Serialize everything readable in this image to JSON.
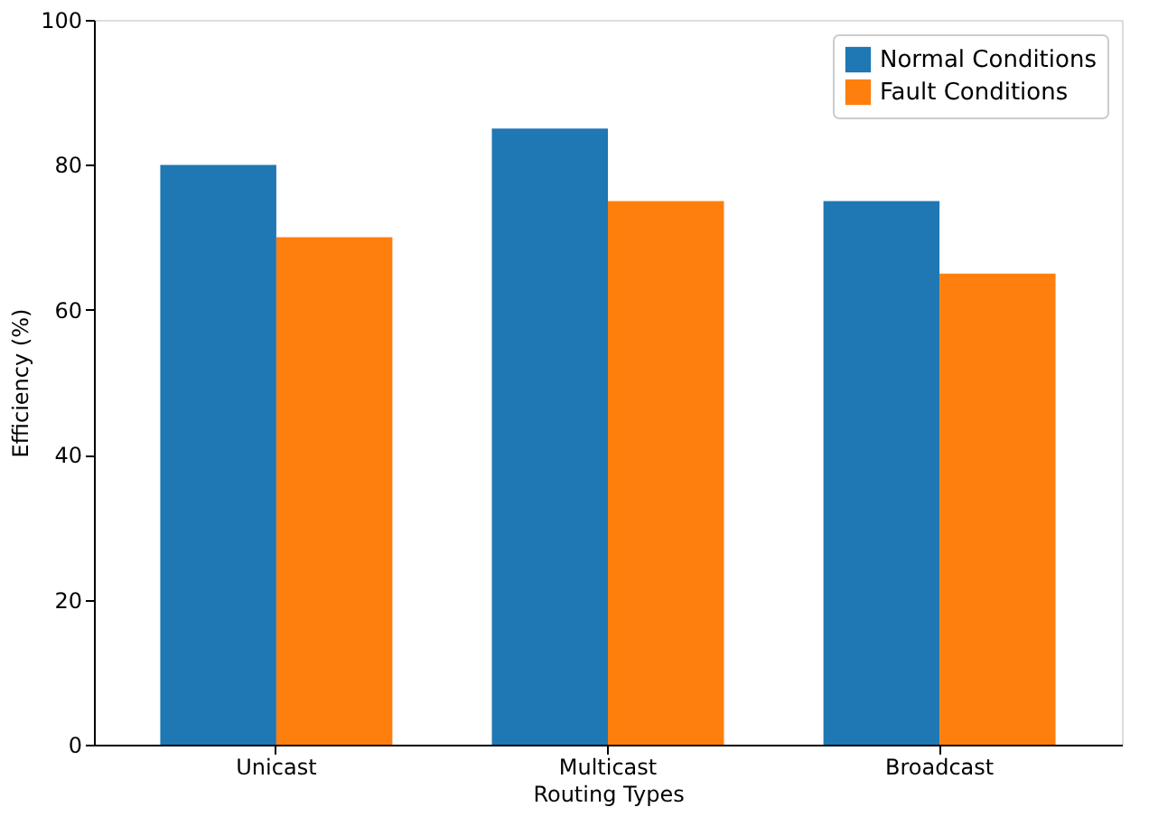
{
  "chart_data": {
    "type": "bar",
    "xlabel": "Routing Types",
    "ylabel": "Efficiency (%)",
    "categories": [
      "Unicast",
      "Multicast",
      "Broadcast"
    ],
    "series": [
      {
        "name": "Normal Conditions",
        "color": "#1f77b4",
        "values": [
          80,
          85,
          75
        ]
      },
      {
        "name": "Fault Conditions",
        "color": "#ff7f0e",
        "values": [
          70,
          75,
          65
        ]
      }
    ],
    "ylim": [
      0,
      100
    ],
    "yticks": [
      0,
      20,
      40,
      60,
      80,
      100
    ],
    "grid": false,
    "legend": "top right"
  }
}
